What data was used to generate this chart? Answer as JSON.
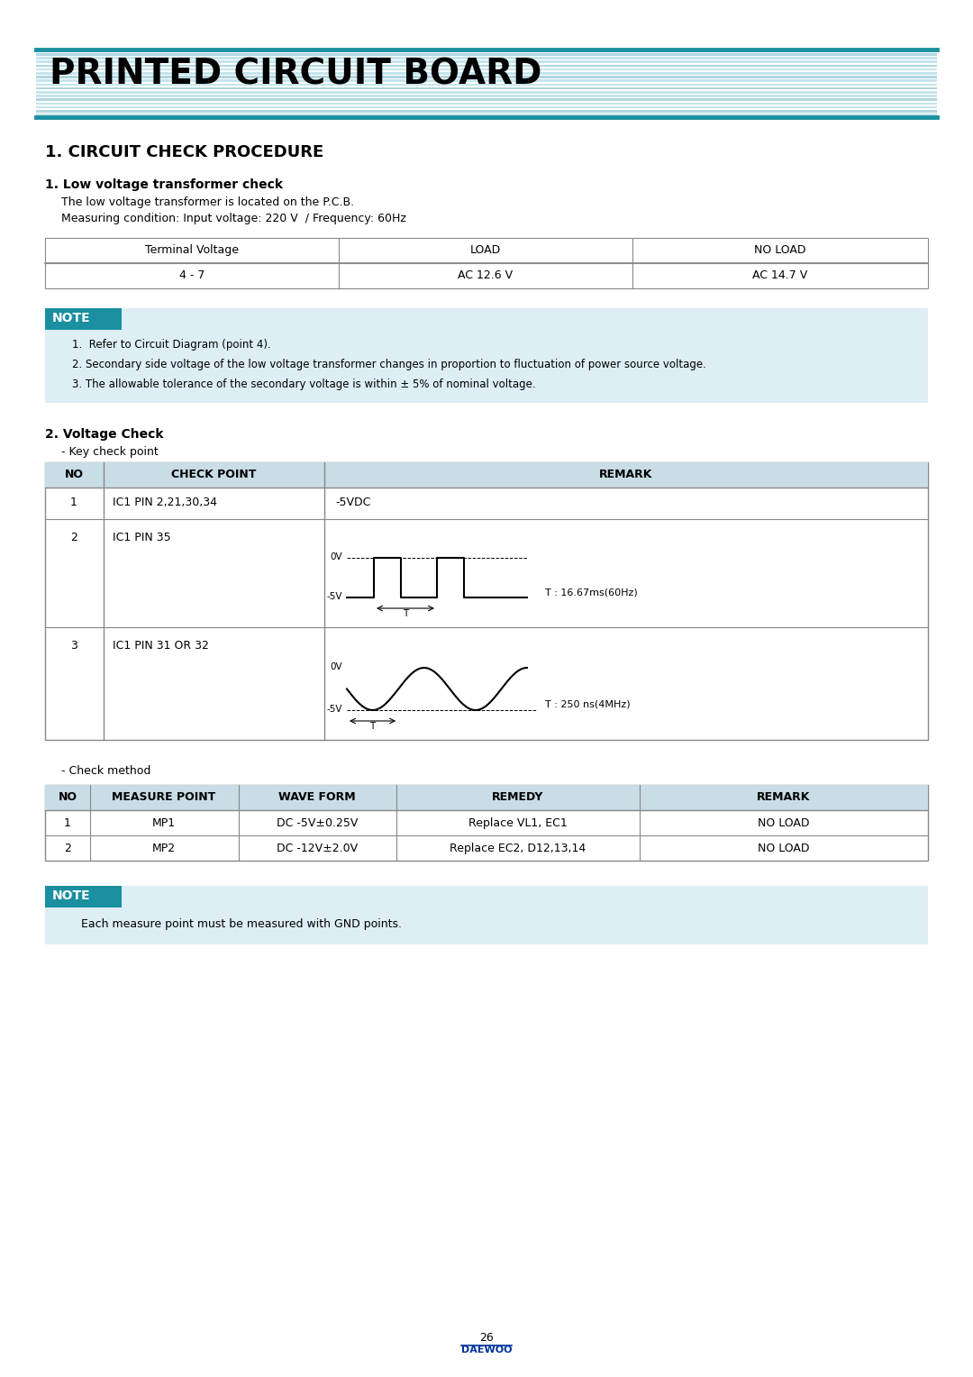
{
  "title": "PRINTED CIRCUIT BOARD",
  "section1_title": "1. CIRCUIT CHECK PROCEDURE",
  "sub1_title": "1. Low voltage transformer check",
  "sub1_text1": "The low voltage transformer is located on the P.C.B.",
  "sub1_text2": "Measuring condition: Input voltage: 220 V  / Frequency: 60Hz",
  "table1_headers": [
    "Terminal Voltage",
    "LOAD",
    "NO LOAD"
  ],
  "table1_data": [
    [
      "4 - 7",
      "AC 12.6 V",
      "AC 14.7 V"
    ]
  ],
  "note1_items": [
    "1.  Refer to Circuit Diagram (point 4).",
    "2. Secondary side voltage of the low voltage transformer changes in proportion to fluctuation of power source voltage.",
    "3. The allowable tolerance of the secondary voltage is within ± 5% of nominal voltage."
  ],
  "sub2_title": "2. Voltage Check",
  "sub2_sub": "- Key check point",
  "table2_headers": [
    "NO",
    "CHECK POINT",
    "REMARK"
  ],
  "table2_row1": [
    "1",
    "IC1 PIN 2,21,30,34",
    "-5VDC"
  ],
  "table2_row2_no": "2",
  "table2_row2_cp": "IC1 PIN 35",
  "table2_row3_no": "3",
  "table2_row3_cp": "IC1 PIN 31 OR 32",
  "wave1_note": "T : 16.67ms(60Hz)",
  "wave2_note": "T : 250 ns(4MHz)",
  "check_method_title": "- Check method",
  "table3_headers": [
    "NO",
    "MEASURE POINT",
    "WAVE FORM",
    "REMEDY",
    "REMARK"
  ],
  "table3_data": [
    [
      "1",
      "MP1",
      "DC -5V±0.25V",
      "Replace VL1, EC1",
      "NO LOAD"
    ],
    [
      "2",
      "MP2",
      "DC -12V±2.0V",
      "Replace EC2, D12,13,14",
      "NO LOAD"
    ]
  ],
  "note2_text": "Each measure point must be measured with GND points.",
  "page_num": "26",
  "header_color": "#1a8fa0",
  "note_bg": "#ddeef5",
  "note_label_bg": "#1a8fa0",
  "table_header_bg": "#c8dde5",
  "bg_color": "#ffffff",
  "text_color": "#000000",
  "daewoo_color": "#003399",
  "border_color": "#888888"
}
